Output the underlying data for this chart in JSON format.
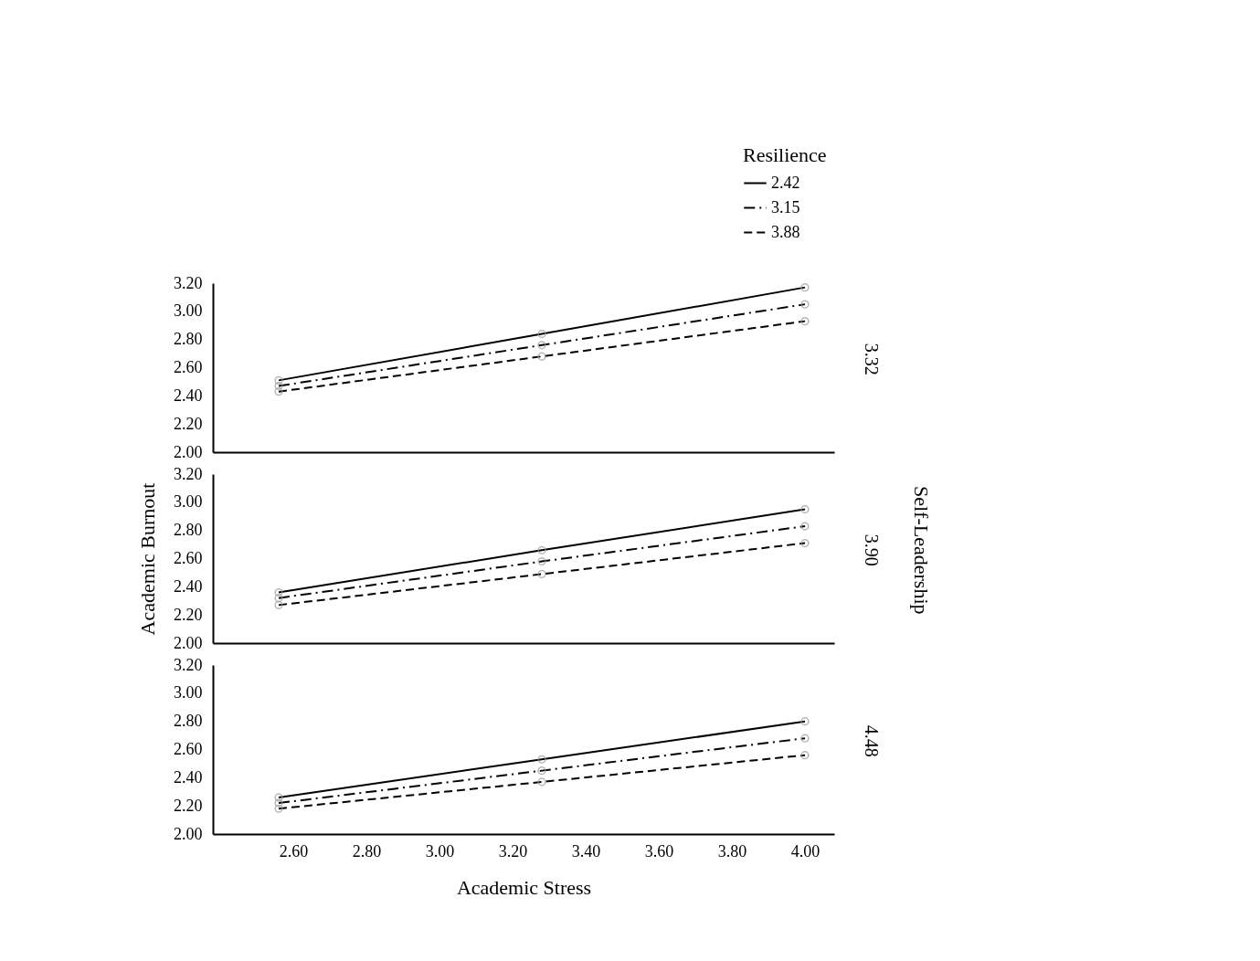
{
  "chart_data": [
    {
      "type": "line",
      "x": [
        2.56,
        3.28,
        4.0
      ],
      "legend_title": "Resilience",
      "legend": "top right",
      "marker": "circle",
      "tick_labels": "y",
      "xlim": [
        2.38,
        4.08
      ],
      "ylim": [
        2.0,
        3.2
      ],
      "yticks": [
        {
          "value": 2.0,
          "label": "2.00"
        },
        {
          "value": 2.2,
          "label": "2.20"
        },
        {
          "value": 2.4,
          "label": "2.40"
        },
        {
          "value": 2.6,
          "label": "2.60"
        },
        {
          "value": 2.8,
          "label": "2.80"
        },
        {
          "value": 3.0,
          "label": "3.00"
        },
        {
          "value": 3.2,
          "label": "3.20"
        }
      ],
      "grid": false,
      "annotations": [
        "3.32"
      ],
      "series": [
        {
          "name": "2.42",
          "color": "#000000",
          "line_style": "solid",
          "values": [
            2.51,
            2.84,
            3.17
          ]
        },
        {
          "name": "3.15",
          "color": "#000000",
          "line_style": "dashdot",
          "values": [
            2.47,
            2.76,
            3.05
          ]
        },
        {
          "name": "3.88",
          "color": "#000000",
          "line_style": "dashed",
          "values": [
            2.43,
            2.68,
            2.93
          ]
        }
      ]
    },
    {
      "type": "line",
      "x": [
        2.56,
        3.28,
        4.0
      ],
      "ylabel": "Academic Burnout",
      "y2label": "Self-Leadership",
      "legend": false,
      "marker": "circle",
      "tick_labels": "y",
      "xlim": [
        2.38,
        4.08
      ],
      "ylim": [
        2.0,
        3.2
      ],
      "yticks": [
        {
          "value": 2.0,
          "label": "2.00"
        },
        {
          "value": 2.2,
          "label": "2.20"
        },
        {
          "value": 2.4,
          "label": "2.40"
        },
        {
          "value": 2.6,
          "label": "2.60"
        },
        {
          "value": 2.8,
          "label": "2.80"
        },
        {
          "value": 3.0,
          "label": "3.00"
        },
        {
          "value": 3.2,
          "label": "3.20"
        }
      ],
      "grid": false,
      "annotations": [
        "3.90"
      ],
      "series": [
        {
          "color": "#000000",
          "line_style": "solid",
          "values": [
            2.36,
            2.66,
            2.95
          ]
        },
        {
          "color": "#000000",
          "line_style": "dashdot",
          "values": [
            2.32,
            2.58,
            2.83
          ]
        },
        {
          "color": "#000000",
          "line_style": "dashed",
          "values": [
            2.27,
            2.49,
            2.71
          ]
        }
      ]
    },
    {
      "type": "line",
      "x": [
        2.56,
        3.28,
        4.0
      ],
      "xlabel": "Academic Stress",
      "legend": false,
      "marker": "circle",
      "xlim": [
        2.38,
        4.08
      ],
      "xticks": [
        {
          "value": 2.6,
          "label": "2.60"
        },
        {
          "value": 2.8,
          "label": "2.80"
        },
        {
          "value": 3.0,
          "label": "3.00"
        },
        {
          "value": 3.2,
          "label": "3.20"
        },
        {
          "value": 3.4,
          "label": "3.40"
        },
        {
          "value": 3.6,
          "label": "3.60"
        },
        {
          "value": 3.8,
          "label": "3.80"
        },
        {
          "value": 4.0,
          "label": "4.00"
        }
      ],
      "ylim": [
        2.0,
        3.2
      ],
      "yticks": [
        {
          "value": 2.0,
          "label": "2.00"
        },
        {
          "value": 2.2,
          "label": "2.20"
        },
        {
          "value": 2.4,
          "label": "2.40"
        },
        {
          "value": 2.6,
          "label": "2.60"
        },
        {
          "value": 2.8,
          "label": "2.80"
        },
        {
          "value": 3.0,
          "label": "3.00"
        },
        {
          "value": 3.2,
          "label": "3.20"
        }
      ],
      "grid": false,
      "annotations": [
        "4.48"
      ],
      "series": [
        {
          "color": "#000000",
          "line_style": "solid",
          "values": [
            2.26,
            2.53,
            2.8
          ]
        },
        {
          "color": "#000000",
          "line_style": "dashdot",
          "values": [
            2.22,
            2.45,
            2.68
          ]
        },
        {
          "color": "#000000",
          "line_style": "dashed",
          "values": [
            2.18,
            2.37,
            2.56
          ]
        }
      ]
    }
  ]
}
